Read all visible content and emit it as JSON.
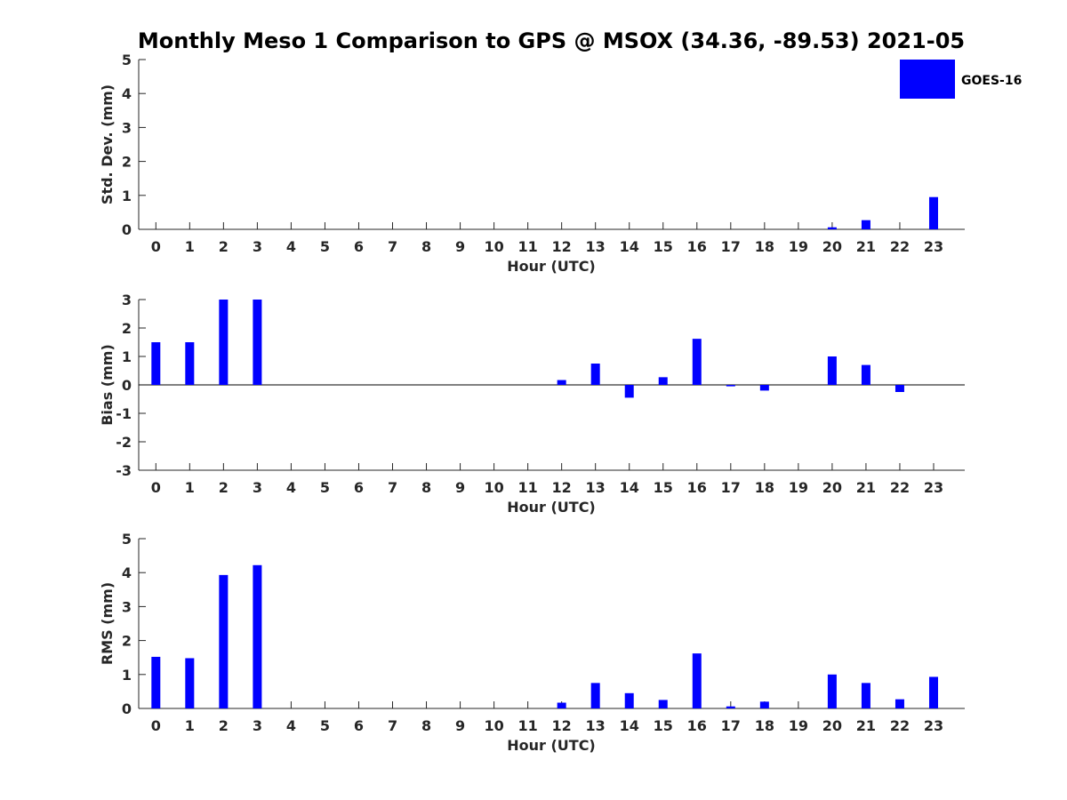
{
  "figure": {
    "title": "Monthly Meso 1 Comparison to GPS @ MSOX (34.36, -89.53) 2021-05"
  },
  "legend": {
    "label": "GOES-16",
    "color": "#0000ff",
    "placement": "top-right"
  },
  "chart_data": [
    {
      "type": "bar",
      "name": "std-dev",
      "xlabel": "Hour (UTC)",
      "ylabel": "Std. Dev. (mm)",
      "ylim": [
        0,
        5
      ],
      "yticks": [
        0,
        1,
        2,
        3,
        4,
        5
      ],
      "categories": [
        "0",
        "1",
        "2",
        "3",
        "4",
        "5",
        "6",
        "7",
        "8",
        "9",
        "10",
        "11",
        "12",
        "13",
        "14",
        "15",
        "16",
        "17",
        "18",
        "19",
        "20",
        "21",
        "22",
        "23"
      ],
      "series": [
        {
          "name": "GOES-16",
          "color": "#0000ff",
          "values": [
            0,
            0,
            0,
            0,
            0,
            0,
            0,
            0,
            0,
            0,
            0,
            0,
            0,
            0,
            0,
            0,
            0,
            0,
            0,
            0,
            0.06,
            0.27,
            0,
            0.95
          ]
        }
      ]
    },
    {
      "type": "bar",
      "name": "bias",
      "xlabel": "Hour (UTC)",
      "ylabel": "Bias (mm)",
      "ylim": [
        -3,
        3
      ],
      "yticks": [
        -3,
        -2,
        -1,
        0,
        1,
        2,
        3
      ],
      "zero_line": true,
      "categories": [
        "0",
        "1",
        "2",
        "3",
        "4",
        "5",
        "6",
        "7",
        "8",
        "9",
        "10",
        "11",
        "12",
        "13",
        "14",
        "15",
        "16",
        "17",
        "18",
        "19",
        "20",
        "21",
        "22",
        "23"
      ],
      "series": [
        {
          "name": "GOES-16",
          "color": "#0000ff",
          "values": [
            1.5,
            1.5,
            3.0,
            3.0,
            0,
            0,
            0,
            0,
            0,
            0,
            0,
            0,
            0.17,
            0.75,
            -0.45,
            0.27,
            1.62,
            -0.05,
            -0.2,
            0,
            1.0,
            0.7,
            -0.25,
            0
          ]
        }
      ]
    },
    {
      "type": "bar",
      "name": "rms",
      "xlabel": "Hour (UTC)",
      "ylabel": "RMS (mm)",
      "ylim": [
        0,
        5
      ],
      "yticks": [
        0,
        1,
        2,
        3,
        4,
        5
      ],
      "categories": [
        "0",
        "1",
        "2",
        "3",
        "4",
        "5",
        "6",
        "7",
        "8",
        "9",
        "10",
        "11",
        "12",
        "13",
        "14",
        "15",
        "16",
        "17",
        "18",
        "19",
        "20",
        "21",
        "22",
        "23"
      ],
      "series": [
        {
          "name": "GOES-16",
          "color": "#0000ff",
          "values": [
            1.52,
            1.48,
            3.93,
            4.22,
            0,
            0,
            0,
            0,
            0,
            0,
            0,
            0,
            0.17,
            0.75,
            0.45,
            0.25,
            1.62,
            0.06,
            0.2,
            0,
            1.0,
            0.75,
            0.27,
            0.93
          ]
        }
      ]
    }
  ]
}
